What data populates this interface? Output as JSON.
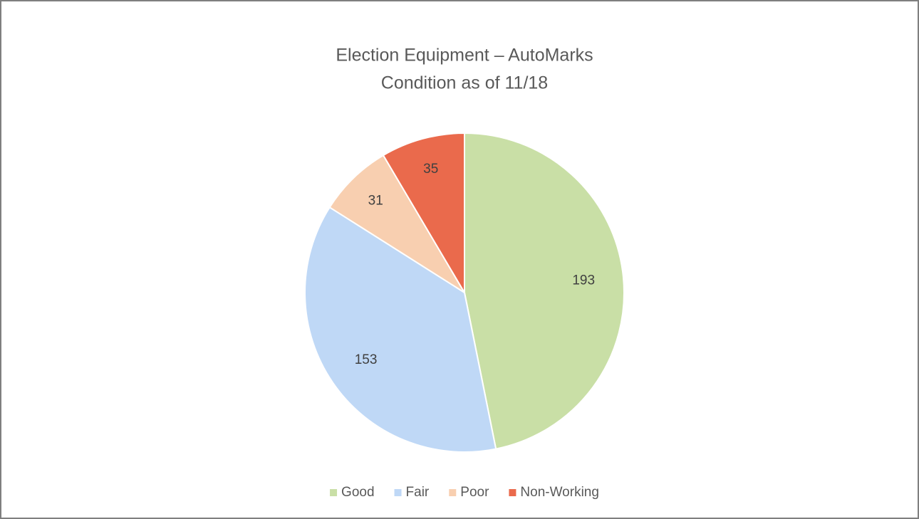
{
  "chart_data": {
    "type": "pie",
    "title": "Election Equipment – AutoMarks",
    "subtitle": "Condition as of 11/18",
    "categories": [
      "Good",
      "Fair",
      "Poor",
      "Non-Working"
    ],
    "values": [
      193,
      153,
      31,
      35
    ],
    "colors": [
      "#c9dfa6",
      "#bfd8f6",
      "#f8cfb0",
      "#ea6a4c"
    ],
    "legend": "bottom"
  }
}
